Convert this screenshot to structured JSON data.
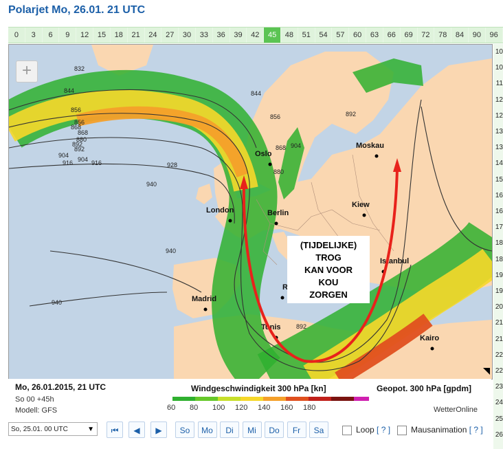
{
  "title": "Polarjet Mo, 26.01. 21 UTC",
  "hours": [
    "0",
    "3",
    "6",
    "9",
    "12",
    "15",
    "18",
    "21",
    "24",
    "27",
    "30",
    "33",
    "36",
    "39",
    "42",
    "45",
    "48",
    "51",
    "54",
    "57",
    "60",
    "63",
    "66",
    "69",
    "72",
    "78",
    "84",
    "90",
    "96"
  ],
  "selected_hour": "45",
  "side_scale": [
    "10",
    "10",
    "11",
    "12",
    "12",
    "13",
    "13",
    "14",
    "15",
    "16",
    "16",
    "17",
    "18",
    "18",
    "19",
    "19",
    "20",
    "21",
    "21",
    "22",
    "22",
    "23",
    "24",
    "25",
    "26"
  ],
  "map": {
    "cities": [
      "Moskau",
      "Oslo",
      "London",
      "Berlin",
      "Kiew",
      "Istanbul",
      "Madrid",
      "Rom",
      "Tunis",
      "Kairo"
    ],
    "contours": [
      "832",
      "844",
      "856",
      "856",
      "868",
      "868",
      "880",
      "892",
      "892",
      "904",
      "904",
      "916",
      "916",
      "928",
      "940",
      "940",
      "940",
      "844",
      "856",
      "868",
      "880",
      "892",
      "892",
      "904"
    ],
    "annotation": [
      "(TIJDELIJKE)",
      "TROG",
      "KAN VOOR",
      "KOU",
      "ZORGEN"
    ]
  },
  "legend": {
    "date": "Mo, 26.01.2015, 21 UTC",
    "run": "So 00 +45h",
    "model": "Modell: GFS",
    "wind_title": "Windgeschwindigkeit 300 hPa [kn]",
    "geo_title": "Geopot. 300 hPa [gpdm]",
    "brand": "WetterOnline",
    "scale_ticks": [
      "60",
      "80",
      "100",
      "120",
      "140",
      "160",
      "180"
    ],
    "scale_colors": [
      "#2fb02f",
      "#66c82a",
      "#c7df2a",
      "#f6d82a",
      "#f4a02a",
      "#e0501f",
      "#c0201a",
      "#7a1410",
      "#d020b0"
    ]
  },
  "controls": {
    "run_select": "So, 25.01. 00 UTC",
    "first_icon": "skip-back-icon",
    "prev_icon": "prev-icon",
    "next_icon": "next-icon",
    "days": [
      "So",
      "Mo",
      "Di",
      "Mi",
      "Do",
      "Fr",
      "Sa"
    ],
    "loop_label": "Loop",
    "mouse_label": "Mausanimation",
    "help": "[ ? ]"
  },
  "colors": {
    "sea": "#c2d4e6",
    "land": "#fad7b1",
    "jet_green": "#3aa83a",
    "arrow": "#e8221b",
    "title": "#1b5fa8"
  }
}
